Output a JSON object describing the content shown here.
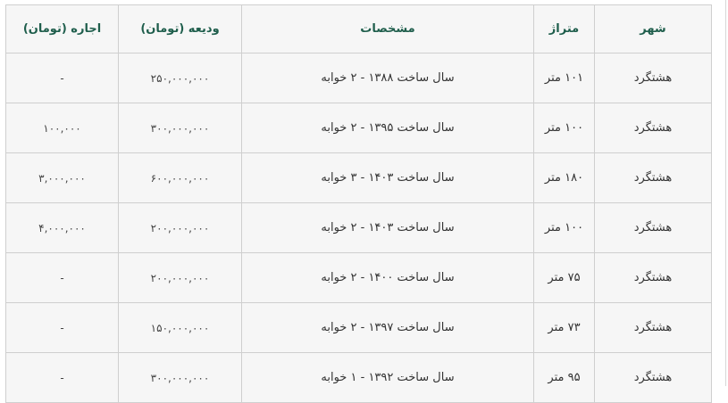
{
  "table": {
    "headers": [
      "شهر",
      "متراژ",
      "مشخصات",
      "ودیعه (تومان)",
      "اجاره (تومان)"
    ],
    "rows": [
      [
        "هشتگرد",
        "۱۰۱ متر",
        "سال ساخت ۱۳۸۸ - ۲ خوابه",
        "۲۵۰,۰۰۰,۰۰۰",
        "-"
      ],
      [
        "هشتگرد",
        "۱۰۰ متر",
        "سال ساخت ۱۳۹۵ - ۲ خوابه",
        "۳۰۰,۰۰۰,۰۰۰",
        "۱۰۰,۰۰۰"
      ],
      [
        "هشتگرد",
        "۱۸۰ متر",
        "سال ساخت ۱۴۰۳ - ۳ خوابه",
        "۶۰۰,۰۰۰,۰۰۰",
        "۳,۰۰۰,۰۰۰"
      ],
      [
        "هشتگرد",
        "۱۰۰ متر",
        "سال ساخت ۱۴۰۳ - ۲ خوابه",
        "۲۰۰,۰۰۰,۰۰۰",
        "۴,۰۰۰,۰۰۰"
      ],
      [
        "هشتگرد",
        "۷۵ متر",
        "سال ساخت ۱۴۰۰ - ۲ خوابه",
        "۲۰۰,۰۰۰,۰۰۰",
        "-"
      ],
      [
        "هشتگرد",
        "۷۳ متر",
        "سال ساخت ۱۳۹۷ - ۲ خوابه",
        "۱۵۰,۰۰۰,۰۰۰",
        "-"
      ],
      [
        "هشتگرد",
        "۹۵ متر",
        "سال ساخت ۱۳۹۲ - ۱ خوابه",
        "۳۰۰,۰۰۰,۰۰۰",
        "-"
      ]
    ]
  },
  "colors": {
    "header_text": "#1f5e4c",
    "background": "#f6f6f6",
    "border": "#cfcfcf"
  }
}
